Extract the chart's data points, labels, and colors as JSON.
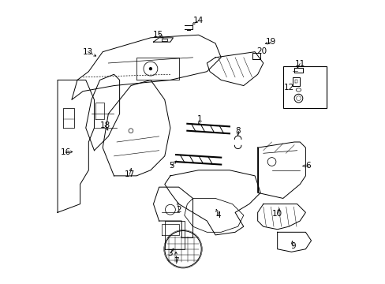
{
  "title": "",
  "bg_color": "#ffffff",
  "line_color": "#000000",
  "label_color": "#000000",
  "fig_width": 4.89,
  "fig_height": 3.6,
  "dpi": 100
}
